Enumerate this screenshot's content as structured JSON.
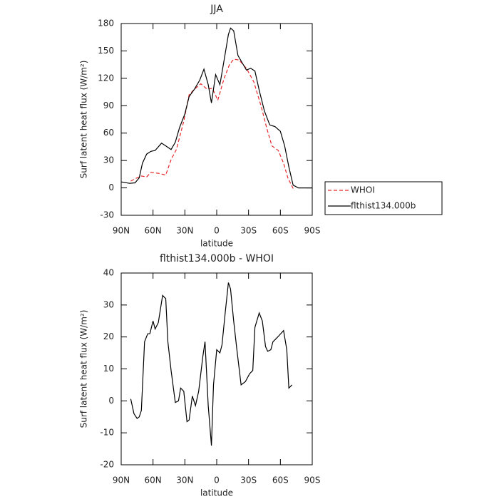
{
  "chart_data": [
    {
      "type": "line",
      "title": "JJA",
      "xlabel": "latitude",
      "ylabel": "Surf latent heat flux (W/m²)",
      "xlim": [
        90,
        -90
      ],
      "xticks": [
        {
          "value": 90,
          "label": "90N"
        },
        {
          "value": 60,
          "label": "60N"
        },
        {
          "value": 30,
          "label": "30N"
        },
        0,
        {
          "value": -30,
          "label": "30S"
        },
        {
          "value": -60,
          "label": "60S"
        },
        {
          "value": -90,
          "label": "90S"
        }
      ],
      "ylim": [
        -30,
        180
      ],
      "yticks": [
        -30,
        0,
        30,
        60,
        90,
        120,
        150,
        180
      ],
      "legend": "right",
      "series": [
        {
          "name": "WHOI",
          "color": "#e8272a",
          "linestyle": "dashed",
          "x": [
            81,
            75,
            71,
            66,
            62,
            55,
            48,
            43,
            38,
            31,
            26,
            21,
            15,
            9,
            4,
            -1,
            -7,
            -12,
            -16,
            -21,
            -28,
            -35,
            -42,
            -47,
            -52,
            -58,
            -63,
            -67,
            -73
          ],
          "values": [
            7.5,
            11,
            13,
            12,
            17,
            16,
            14,
            31,
            42,
            73,
            102,
            108,
            114,
            108,
            109,
            96,
            120,
            135,
            141,
            140,
            131,
            116,
            89,
            66,
            46,
            41,
            27,
            11,
            -3
          ]
        },
        {
          "name": "flthist134.000b",
          "color": "#000000",
          "linestyle": "solid",
          "x": [
            90,
            82,
            77,
            73,
            70,
            66,
            62,
            58,
            52,
            48,
            43,
            39,
            35,
            30,
            26,
            21,
            16,
            12,
            8,
            5,
            1,
            -3,
            -7,
            -11,
            -13,
            -16,
            -20,
            -23,
            -28,
            -32,
            -36,
            -40,
            -45,
            -50,
            -55,
            -60,
            -64,
            -68,
            -72,
            -77,
            -82,
            -90
          ],
          "values": [
            6.5,
            5,
            5.5,
            11,
            27,
            37,
            40,
            41,
            49,
            46,
            42,
            50,
            66,
            81,
            100,
            108,
            118,
            130,
            113,
            93,
            124,
            113,
            140,
            168,
            175,
            172,
            145,
            139,
            129,
            131,
            128,
            107,
            84,
            69,
            67,
            62,
            46,
            23,
            3,
            0,
            0,
            0
          ]
        }
      ]
    },
    {
      "type": "line",
      "title": "flthist134.000b - WHOI",
      "xlabel": "latitude",
      "ylabel": "Surf latent heat flux (W/m²)",
      "xlim": [
        90,
        -90
      ],
      "xticks": [
        {
          "value": 90,
          "label": "90N"
        },
        {
          "value": 60,
          "label": "60N"
        },
        {
          "value": 30,
          "label": "30N"
        },
        0,
        {
          "value": -30,
          "label": "30S"
        },
        {
          "value": -60,
          "label": "60S"
        },
        {
          "value": -90,
          "label": "90S"
        }
      ],
      "ylim": [
        -20,
        40
      ],
      "yticks": [
        -20,
        -10,
        0,
        10,
        20,
        30,
        40
      ],
      "series": [
        {
          "color": "#000000",
          "linestyle": "solid",
          "x": [
            81,
            78,
            75,
            73,
            71,
            68,
            65,
            63,
            60,
            58,
            55,
            51,
            48,
            46,
            43,
            39,
            36,
            34,
            31,
            28,
            26,
            23,
            20,
            17,
            13,
            11,
            8,
            5,
            3,
            0,
            -3,
            -5,
            -8,
            -11,
            -13,
            -16,
            -19,
            -23,
            -27,
            -31,
            -34,
            -36,
            -40,
            -43,
            -46,
            -48,
            -51,
            -53,
            -56,
            -59,
            -63,
            -66,
            -68,
            -71
          ],
          "values": [
            0.6,
            -4,
            -5.5,
            -5,
            -3,
            18.5,
            21,
            21,
            25,
            22.5,
            24.5,
            33,
            32,
            18.5,
            9.5,
            -0.5,
            0,
            4,
            3,
            -6.5,
            -6,
            1.5,
            -1.5,
            3,
            14,
            18.5,
            -1.5,
            -14,
            5,
            16,
            15,
            17.5,
            27.5,
            37,
            35,
            25,
            16,
            5,
            6,
            8.5,
            9.5,
            23,
            27.5,
            25,
            17,
            15.5,
            16,
            18.5,
            19.5,
            20.5,
            22,
            16,
            4,
            5
          ]
        }
      ]
    }
  ]
}
